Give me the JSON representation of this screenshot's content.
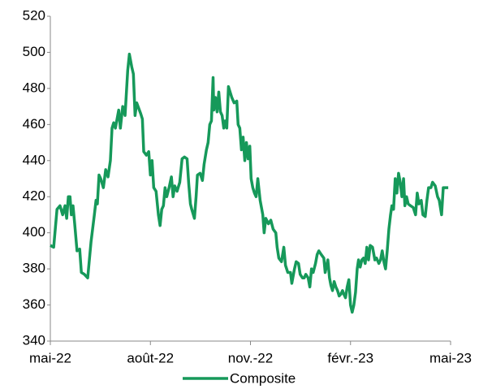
{
  "chart_data": {
    "type": "line",
    "x": [
      0,
      0.1,
      0.2,
      0.29,
      0.37,
      0.44,
      0.49,
      0.54,
      0.59,
      0.63,
      0.68,
      0.73,
      0.8,
      0.88,
      0.93,
      1.02,
      1.12,
      1.17,
      1.22,
      1.32,
      1.37,
      1.41,
      1.46,
      1.51,
      1.59,
      1.66,
      1.73,
      1.8,
      1.85,
      1.9,
      1.95,
      2.05,
      2.1,
      2.17,
      2.24,
      2.32,
      2.37,
      2.44,
      2.49,
      2.54,
      2.59,
      2.63,
      2.71,
      2.76,
      2.8,
      2.88,
      2.95,
      3,
      3.05,
      3.1,
      3.17,
      3.24,
      3.29,
      3.34,
      3.39,
      3.44,
      3.49,
      3.56,
      3.63,
      3.68,
      3.73,
      3.8,
      3.88,
      3.95,
      4.02,
      4.1,
      4.15,
      4.2,
      4.24,
      4.32,
      4.37,
      4.41,
      4.49,
      4.56,
      4.61,
      4.68,
      4.73,
      4.78,
      4.83,
      4.88,
      4.9,
      4.95,
      5,
      5.05,
      5.1,
      5.15,
      5.2,
      5.24,
      5.29,
      5.34,
      5.39,
      5.44,
      5.51,
      5.59,
      5.63,
      5.68,
      5.73,
      5.78,
      5.83,
      5.88,
      5.93,
      5.98,
      6.02,
      6.07,
      6.12,
      6.17,
      6.22,
      6.29,
      6.37,
      6.41,
      6.46,
      6.54,
      6.61,
      6.68,
      6.76,
      6.8,
      6.85,
      6.93,
      7,
      7.05,
      7.12,
      7.2,
      7.24,
      7.32,
      7.37,
      7.44,
      7.49,
      7.56,
      7.61,
      7.66,
      7.73,
      7.78,
      7.83,
      7.88,
      7.95,
      8,
      8.05,
      8.12,
      8.2,
      8.24,
      8.32,
      8.37,
      8.41,
      8.46,
      8.51,
      8.56,
      8.61,
      8.66,
      8.71,
      8.76,
      8.8,
      8.85,
      8.9,
      8.95,
      9,
      9.05,
      9.1,
      9.15,
      9.2,
      9.24,
      9.29,
      9.34,
      9.39,
      9.44,
      9.49,
      9.54,
      9.59,
      9.66,
      9.73,
      9.78,
      9.85,
      9.9,
      9.95,
      10,
      10.05,
      10.1,
      10.15,
      10.2,
      10.24,
      10.29,
      10.34,
      10.39,
      10.44,
      10.49,
      10.54,
      10.59,
      10.63,
      10.68,
      10.73,
      10.8,
      10.88,
      10.95,
      11,
      11.05,
      11.12,
      11.17,
      11.24,
      11.29,
      11.34,
      11.41,
      11.46,
      11.54,
      11.61,
      11.66,
      11.73,
      11.78,
      11.85,
      11.93
    ],
    "series": [
      {
        "name": "Composite",
        "color": "#16995a",
        "values": [
          393,
          392,
          413,
          415,
          410,
          415,
          408,
          420,
          420,
          410,
          415,
          405,
          390,
          391,
          378,
          377,
          375,
          385,
          395,
          410,
          418,
          416,
          432,
          430,
          425,
          435,
          431,
          440,
          458,
          461,
          458,
          468,
          458,
          470,
          465,
          490,
          499,
          492,
          488,
          465,
          472,
          470,
          466,
          463,
          445,
          443,
          445,
          432,
          440,
          425,
          423,
          410,
          404,
          413,
          415,
          425,
          420,
          425,
          431,
          420,
          426,
          423,
          428,
          441,
          442,
          441,
          427,
          416,
          413,
          408,
          420,
          432,
          433,
          429,
          438,
          446,
          450,
          460,
          462,
          486,
          468,
          475,
          467,
          478,
          467,
          465,
          458,
          462,
          458,
          481,
          478,
          475,
          472,
          473,
          460,
          458,
          446,
          453,
          440,
          450,
          441,
          448,
          430,
          425,
          422,
          420,
          430,
          418,
          410,
          400,
          408,
          405,
          407,
          402,
          400,
          392,
          386,
          384,
          392,
          382,
          378,
          378,
          372,
          380,
          384,
          383,
          377,
          375,
          375,
          377,
          375,
          370,
          380,
          378,
          383,
          388,
          390,
          388,
          386,
          378,
          385,
          375,
          371,
          368,
          373,
          370,
          368,
          365,
          366,
          368,
          366,
          364,
          370,
          374,
          360,
          356,
          360,
          367,
          380,
          385,
          381,
          385,
          386,
          383,
          392,
          385,
          393,
          392,
          385,
          386,
          383,
          385,
          390,
          384,
          380,
          390,
          402,
          410,
          415,
          413,
          430,
          422,
          433,
          428,
          420,
          430,
          415,
          420,
          416,
          415,
          414,
          410,
          422,
          416,
          418,
          410,
          409,
          418,
          425,
          425,
          428,
          426,
          420,
          418,
          410,
          425,
          425,
          425
        ]
      }
    ],
    "xlim": [
      0,
      12
    ],
    "xticks": [
      {
        "value": 0,
        "label": "mai-22"
      },
      {
        "value": 3,
        "label": "août-22"
      },
      {
        "value": 6,
        "label": "nov.-22"
      },
      {
        "value": 9,
        "label": "févr.-23"
      },
      {
        "value": 12,
        "label": "mai-23"
      }
    ],
    "ylim": [
      340,
      520
    ],
    "yticks": [
      340,
      360,
      380,
      400,
      420,
      440,
      460,
      480,
      500,
      520
    ],
    "grid": false,
    "legend": "bottom"
  }
}
